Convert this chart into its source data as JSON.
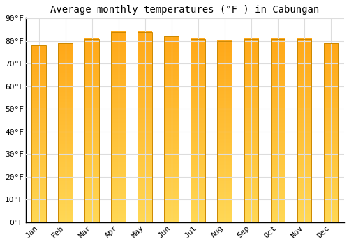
{
  "title": "Average monthly temperatures (°F ) in Cabungan",
  "months": [
    "Jan",
    "Feb",
    "Mar",
    "Apr",
    "May",
    "Jun",
    "Jul",
    "Aug",
    "Sep",
    "Oct",
    "Nov",
    "Dec"
  ],
  "values": [
    78,
    79,
    81,
    84,
    84,
    82,
    81,
    80,
    81,
    81,
    81,
    79
  ],
  "grad_top": "#FFA818",
  "grad_bottom": "#FFD855",
  "bar_edge_color": "#CC8800",
  "ylim": [
    0,
    90
  ],
  "yticks": [
    0,
    10,
    20,
    30,
    40,
    50,
    60,
    70,
    80,
    90
  ],
  "ytick_labels": [
    "0°F",
    "10°F",
    "20°F",
    "30°F",
    "40°F",
    "50°F",
    "60°F",
    "70°F",
    "80°F",
    "90°F"
  ],
  "background_color": "#FFFFFF",
  "grid_color": "#DDDDDD",
  "title_fontsize": 10,
  "tick_fontsize": 8,
  "bar_width": 0.55
}
